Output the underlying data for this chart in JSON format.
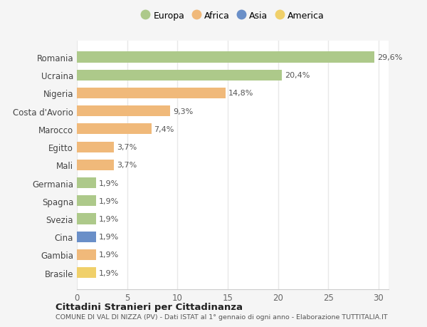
{
  "countries": [
    "Romania",
    "Ucraina",
    "Nigeria",
    "Costa d'Avorio",
    "Marocco",
    "Egitto",
    "Mali",
    "Germania",
    "Spagna",
    "Svezia",
    "Cina",
    "Gambia",
    "Brasile"
  ],
  "values": [
    29.6,
    20.4,
    14.8,
    9.3,
    7.4,
    3.7,
    3.7,
    1.9,
    1.9,
    1.9,
    1.9,
    1.9,
    1.9
  ],
  "labels": [
    "29,6%",
    "20,4%",
    "14,8%",
    "9,3%",
    "7,4%",
    "3,7%",
    "3,7%",
    "1,9%",
    "1,9%",
    "1,9%",
    "1,9%",
    "1,9%",
    "1,9%"
  ],
  "continents": [
    "Europa",
    "Europa",
    "Africa",
    "Africa",
    "Africa",
    "Africa",
    "Africa",
    "Europa",
    "Europa",
    "Europa",
    "Asia",
    "Africa",
    "America"
  ],
  "colors": {
    "Europa": "#adc98a",
    "Africa": "#f0b97a",
    "Asia": "#6a8fc8",
    "America": "#f0d06a"
  },
  "legend_order": [
    "Europa",
    "Africa",
    "Asia",
    "America"
  ],
  "title": "Cittadini Stranieri per Cittadinanza",
  "subtitle": "COMUNE DI VAL DI NIZZA (PV) - Dati ISTAT al 1° gennaio di ogni anno - Elaborazione TUTTITALIA.IT",
  "xlim": [
    0,
    31
  ],
  "xticks": [
    0,
    5,
    10,
    15,
    20,
    25,
    30
  ],
  "fig_background": "#f5f5f5",
  "plot_background": "#ffffff",
  "grid_color": "#e8e8e8",
  "bar_height": 0.6,
  "label_color": "#666666",
  "text_color": "#555555"
}
